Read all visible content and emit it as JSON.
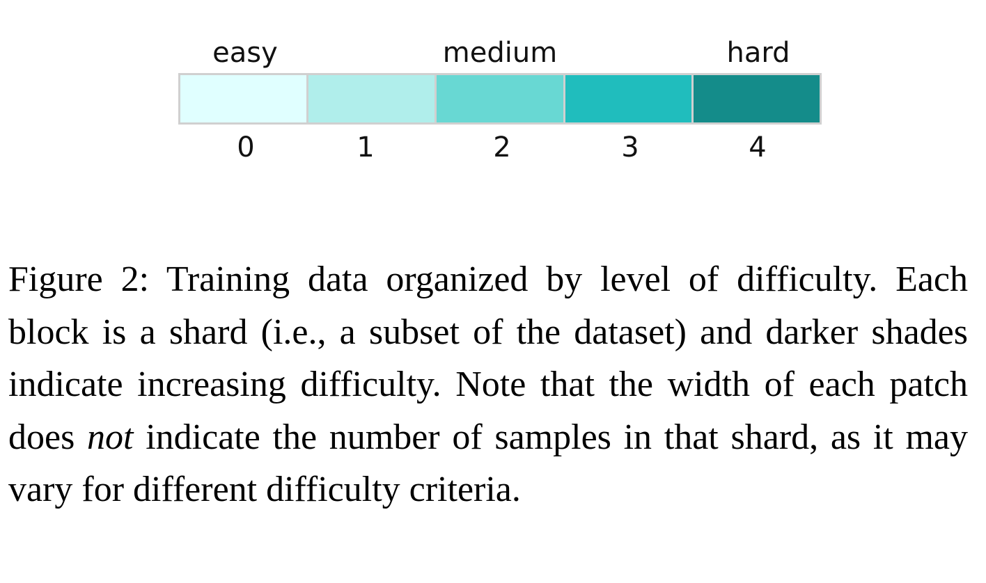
{
  "figure": {
    "difficulty_labels": [
      {
        "text": "easy",
        "shard": 0
      },
      {
        "text": "medium",
        "shard": 2
      },
      {
        "text": "hard",
        "shard": 4
      }
    ],
    "shards": [
      {
        "label": "0",
        "color": "#e0ffff"
      },
      {
        "label": "1",
        "color": "#b0eeeb"
      },
      {
        "label": "2",
        "color": "#68d8d3"
      },
      {
        "label": "3",
        "color": "#20bdbd"
      },
      {
        "label": "4",
        "color": "#148c8a"
      }
    ]
  },
  "caption": {
    "part1": "Figure 2: Training data organized by level of difficulty. Each block is a shard (i.e., a subset of the dataset) and darker shades indicate increasing difficulty.  Note that the width of each patch does ",
    "emphasis": "not",
    "part2": " indicate the number of samples in that shard, as it may vary for different difficulty criteria."
  }
}
